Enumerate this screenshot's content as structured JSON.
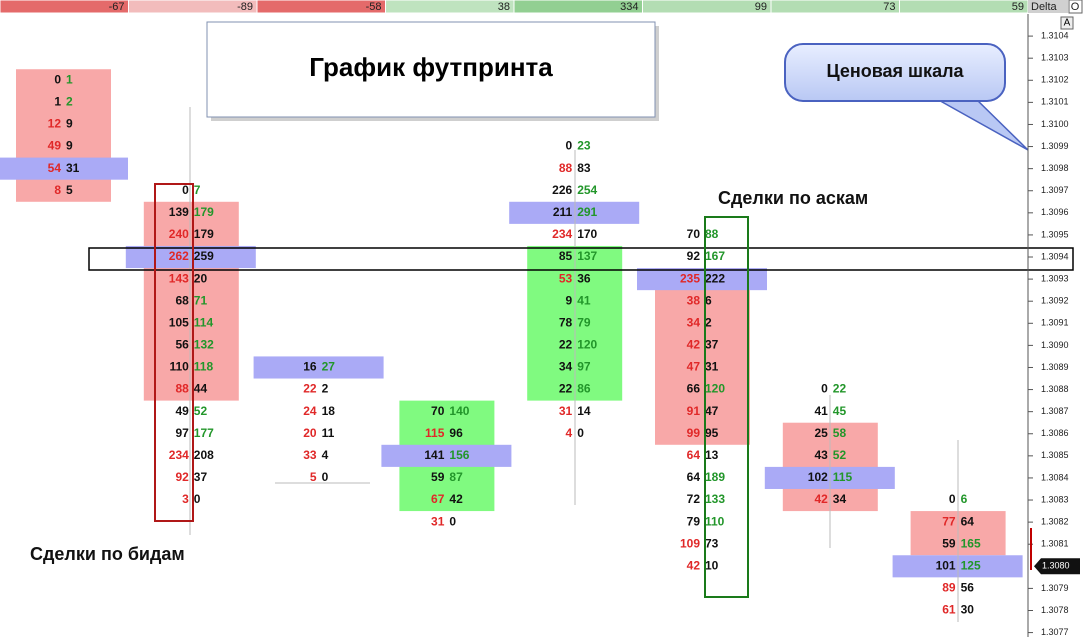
{
  "chart_data": {
    "type": "footprint",
    "title": "График футпринта",
    "annotations": {
      "price_scale": "Ценовая шкала",
      "ask_trades": "Сделки по аскам",
      "bid_trades": "Сделки по бидам"
    },
    "buttons": {
      "top": "O",
      "scale": "A"
    },
    "delta": {
      "label": "Delta",
      "values": [
        -67,
        -89,
        -58,
        38,
        334,
        99,
        73,
        59
      ],
      "colors": [
        "#e46a6a",
        "#f2bcbc",
        "#e46a6a",
        "#bfe3bf",
        "#92cf92",
        "#b3ddb3",
        "#b3ddb3",
        "#b3ddb3"
      ]
    },
    "ylim": [
      1.30768,
      1.3105
    ],
    "yticks": [
      1.3104,
      1.3103,
      1.3102,
      1.3101,
      {
        "value": 1.31,
        "label": "1.3100"
      },
      1.3099,
      1.3098,
      1.3097,
      1.3096,
      1.3095,
      1.3094,
      1.3093,
      1.3092,
      1.3091,
      {
        "value": 1.309,
        "label": "1.3090"
      },
      1.3089,
      1.3088,
      1.3087,
      1.3086,
      1.3085,
      1.3084,
      1.3083,
      1.3082,
      1.3081,
      1.3079,
      1.3078,
      1.3077
    ],
    "last_price": {
      "value": 1.308,
      "label": "1.3080"
    },
    "bid_color": "#e02828",
    "ask_color": "#22962a",
    "poc_color": "#aaaaf6",
    "columns": [
      {
        "high": 1.3102,
        "bids": [
          0,
          1,
          12,
          49,
          54,
          8
        ],
        "asks": [
          1,
          2,
          9,
          9,
          31,
          5
        ],
        "value_area": [
          1.3102,
          1.3097
        ],
        "va_color": "#f8a8a8",
        "poc": 1.3098
      },
      {
        "high": 1.3097,
        "bids": [
          0,
          139,
          240,
          262,
          143,
          68,
          105,
          56,
          110,
          88,
          49,
          97,
          234,
          92,
          3
        ],
        "asks": [
          7,
          179,
          179,
          259,
          20,
          71,
          114,
          132,
          118,
          44,
          52,
          177,
          208,
          37,
          0
        ],
        "value_area": [
          1.3096,
          1.3088
        ],
        "va_color": "#f8a8a8",
        "poc": 1.3094
      },
      {
        "high": 1.3089,
        "bids": [
          16,
          22,
          24,
          20,
          33,
          5
        ],
        "asks": [
          27,
          2,
          18,
          11,
          4,
          0
        ],
        "poc": 1.3089
      },
      {
        "high": 1.3087,
        "bids": [
          70,
          115,
          141,
          59,
          67,
          31
        ],
        "asks": [
          140,
          96,
          156,
          87,
          42,
          0
        ],
        "value_area": [
          1.3087,
          1.3083
        ],
        "va_color": "#80fa80",
        "poc": 1.3085
      },
      {
        "high": 1.3099,
        "bids": [
          0,
          88,
          226,
          211,
          234,
          85,
          53,
          9,
          78,
          22,
          34,
          22,
          31,
          4
        ],
        "asks": [
          23,
          83,
          254,
          291,
          170,
          137,
          36,
          41,
          79,
          120,
          97,
          86,
          14,
          0
        ],
        "value_area": [
          1.3094,
          1.3088
        ],
        "va_color": "#80fa80",
        "poc": 1.3096
      },
      {
        "high": 1.3095,
        "bids": [
          70,
          92,
          235,
          38,
          34,
          42,
          47,
          66,
          91,
          99,
          64,
          64,
          72,
          79,
          109,
          42
        ],
        "asks": [
          88,
          167,
          222,
          6,
          2,
          37,
          31,
          120,
          47,
          95,
          13,
          189,
          133,
          110,
          73,
          10
        ],
        "value_area": [
          1.3093,
          1.3086
        ],
        "va_color": "#f8a8a8",
        "poc": 1.3093
      },
      {
        "high": 1.3088,
        "bids": [
          0,
          41,
          25,
          43,
          102,
          42
        ],
        "asks": [
          22,
          45,
          58,
          52,
          115,
          34
        ],
        "value_area": [
          1.3086,
          1.3083
        ],
        "va_color": "#f8a8a8",
        "poc": 1.3084
      },
      {
        "high": 1.3083,
        "bids": [
          0,
          77,
          59,
          101,
          89,
          61
        ],
        "asks": [
          6,
          64,
          165,
          125,
          56,
          30
        ],
        "value_area": [
          1.3082,
          1.3081
        ],
        "va_color": "#f8a8a8",
        "poc": 1.308
      }
    ]
  }
}
